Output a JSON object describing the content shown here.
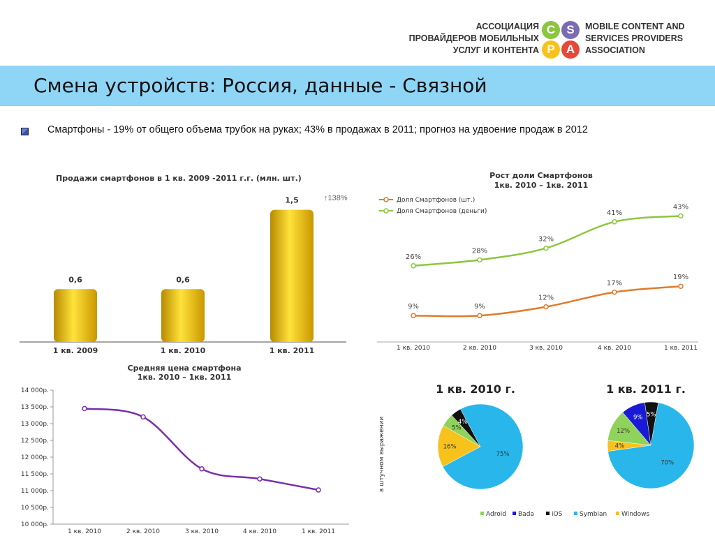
{
  "header": {
    "logo_left_lines": [
      "АССОЦИАЦИЯ",
      "ПРОВАЙДЕРОВ МОБИЛЬНЫХ",
      "УСЛУГ И КОНТЕНТА"
    ],
    "logo_right_lines": [
      "MOBILE CONTENT AND",
      "SERVICES PROVIDERS",
      "ASSOCIATION"
    ],
    "logo_letters": [
      {
        "letter": "C",
        "color": "#8cc63f"
      },
      {
        "letter": "S",
        "color": "#7b6bb5"
      },
      {
        "letter": "P",
        "color": "#f7c21b"
      },
      {
        "letter": "A",
        "color": "#e6493a"
      }
    ]
  },
  "slide": {
    "title": "Смена устройств: Россия, данные - Связной",
    "bullet": "Смартфоны - 19% от общего объема трубок на руках; 43% в продажах в 2011; прогноз на удвоение продаж в 2012"
  },
  "chart_data": [
    {
      "type": "bar",
      "title": "Продажи смартфонов в 1 кв. 2009 -2011 г.г.  (млн. шт.)",
      "categories": [
        "1 кв. 2009",
        "1 кв. 2010",
        "1 кв. 2011"
      ],
      "values": [
        0.6,
        0.6,
        1.5
      ],
      "value_labels": [
        "0,6",
        "0,6",
        "1,5"
      ],
      "annotation": "↑138%",
      "bar_color": "#f2c200",
      "ylim": [
        0,
        1.6
      ]
    },
    {
      "type": "line",
      "title_lines": [
        "Рост доли  Смартфонов",
        "1кв. 2010 – 1кв. 2011"
      ],
      "x": [
        "1 кв. 2010",
        "2 кв. 2010",
        "3 кв. 2010",
        "4 кв. 2010",
        "1 кв. 2011"
      ],
      "series": [
        {
          "name": "Доля Смартфонов (шт.)",
          "values": [
            9,
            9,
            12,
            17,
            19
          ],
          "labels": [
            "9%",
            "9%",
            "12%",
            "17%",
            "19%"
          ],
          "color": "#e07b2a"
        },
        {
          "name": "Доля Смартфонов (деньги)",
          "values": [
            26,
            28,
            32,
            41,
            43
          ],
          "labels": [
            "26%",
            "28%",
            "32%",
            "41%",
            "43%"
          ],
          "color": "#8cc63f"
        }
      ],
      "ylim": [
        0,
        50
      ],
      "legend": "top-left"
    },
    {
      "type": "line",
      "title_lines": [
        "Средняя цена смартфона",
        "1кв. 2010 – 1кв. 2011"
      ],
      "x": [
        "1 кв. 2010",
        "2 кв. 2010",
        "3 кв. 2010",
        "4 кв. 2010",
        "1 кв. 2011"
      ],
      "series": [
        {
          "values": [
            13450,
            13200,
            11650,
            11350,
            11020
          ],
          "color": "#7a2fa6"
        }
      ],
      "yticks": [
        10000,
        10500,
        11000,
        11500,
        12000,
        12500,
        13000,
        13500,
        14000
      ],
      "ytick_labels": [
        "10 000р.",
        "10 500р.",
        "11 000р.",
        "11 500р.",
        "12 000р.",
        "12 500р.",
        "13 000р.",
        "13 500р.",
        "14 000р."
      ],
      "ylim": [
        10000,
        14000
      ]
    },
    {
      "type": "pie",
      "title": "1 кв. 2010 г.",
      "side_label": "в штучном выражении",
      "slices": [
        {
          "name": "Symbian",
          "value": 75,
          "label": "75%",
          "color": "#29b6ea"
        },
        {
          "name": "Windows",
          "value": 16,
          "label": "16%",
          "color": "#f7c21b"
        },
        {
          "name": "Adroid",
          "value": 5,
          "label": "5%",
          "color": "#8fd35a"
        },
        {
          "name": "iOS",
          "value": 4,
          "label": "4%",
          "color": "#111111"
        }
      ]
    },
    {
      "type": "pie",
      "title": "1 кв. 2011 г.",
      "slices": [
        {
          "name": "Symbian",
          "value": 70,
          "label": "70%",
          "color": "#29b6ea"
        },
        {
          "name": "Windows",
          "value": 4,
          "label": "4%",
          "color": "#f7c21b"
        },
        {
          "name": "Adroid",
          "value": 12,
          "label": "12%",
          "color": "#8fd35a"
        },
        {
          "name": "Bada",
          "value": 9,
          "label": "9%",
          "color": "#1a1ad6"
        },
        {
          "name": "iOS",
          "value": 5,
          "label": "5%",
          "color": "#111111"
        }
      ]
    }
  ],
  "pie_legend": [
    {
      "name": "Adroid",
      "color": "#8fd35a"
    },
    {
      "name": "Bada",
      "color": "#1a1ad6"
    },
    {
      "name": "iOS",
      "color": "#111111"
    },
    {
      "name": "Symbian",
      "color": "#29b6ea"
    },
    {
      "name": "Windows",
      "color": "#f7c21b"
    }
  ]
}
